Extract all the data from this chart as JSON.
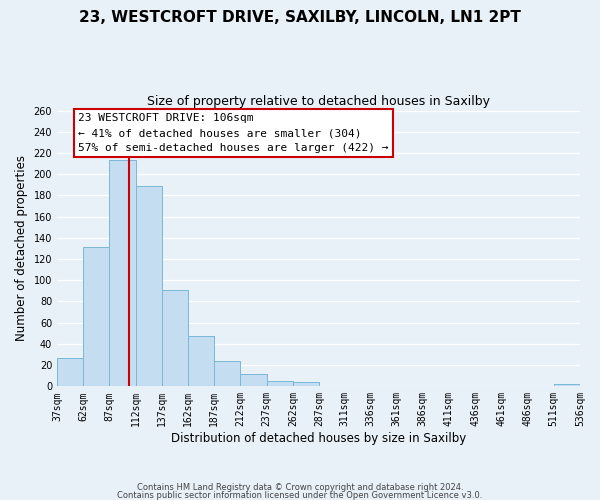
{
  "title": "23, WESTCROFT DRIVE, SAXILBY, LINCOLN, LN1 2PT",
  "subtitle": "Size of property relative to detached houses in Saxilby",
  "xlabel": "Distribution of detached houses by size in Saxilby",
  "ylabel": "Number of detached properties",
  "bin_edges": [
    37,
    62,
    87,
    112,
    137,
    162,
    187,
    212,
    237,
    262,
    287,
    311,
    336,
    361,
    386,
    411,
    436,
    461,
    486,
    511,
    536
  ],
  "bin_labels": [
    "37sqm",
    "62sqm",
    "87sqm",
    "112sqm",
    "137sqm",
    "162sqm",
    "187sqm",
    "212sqm",
    "237sqm",
    "262sqm",
    "287sqm",
    "311sqm",
    "336sqm",
    "361sqm",
    "386sqm",
    "411sqm",
    "436sqm",
    "461sqm",
    "486sqm",
    "511sqm",
    "536sqm"
  ],
  "counts": [
    27,
    131,
    213,
    189,
    91,
    47,
    24,
    12,
    5,
    4,
    0,
    0,
    0,
    0,
    0,
    0,
    0,
    0,
    0,
    2
  ],
  "bar_color": "#c5ddf0",
  "bar_edge_color": "#7ab8d8",
  "vline_x": 106,
  "vline_color": "#cc0000",
  "ylim": [
    0,
    260
  ],
  "yticks": [
    0,
    20,
    40,
    60,
    80,
    100,
    120,
    140,
    160,
    180,
    200,
    220,
    240,
    260
  ],
  "annotation_title": "23 WESTCROFT DRIVE: 106sqm",
  "annotation_line1": "← 41% of detached houses are smaller (304)",
  "annotation_line2": "57% of semi-detached houses are larger (422) →",
  "footer1": "Contains HM Land Registry data © Crown copyright and database right 2024.",
  "footer2": "Contains public sector information licensed under the Open Government Licence v3.0.",
  "background_color": "#e8f0f8",
  "grid_color": "#ffffff",
  "title_fontsize": 11,
  "subtitle_fontsize": 9,
  "axis_label_fontsize": 8.5,
  "tick_fontsize": 7,
  "footer_fontsize": 6
}
